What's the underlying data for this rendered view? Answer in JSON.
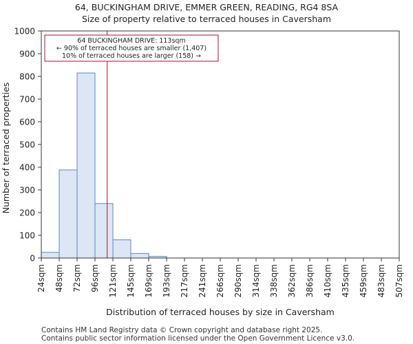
{
  "chart_data": {
    "type": "histogram",
    "title_line1": "64, BUCKINGHAM DRIVE, EMMER GREEN, READING, RG4 8SA",
    "title_line2": "Size of property relative to terraced houses in Caversham",
    "xlabel": "Distribution of terraced houses by size in Caversham",
    "ylabel": "Number of terraced properties",
    "ylim": [
      0,
      1000
    ],
    "yticks": [
      0,
      100,
      200,
      300,
      400,
      500,
      600,
      700,
      800,
      900,
      1000
    ],
    "bin_edges": [
      24,
      48,
      72,
      96,
      121,
      145,
      169,
      193,
      217,
      241,
      266,
      290,
      314,
      338,
      362,
      386,
      410,
      435,
      459,
      483,
      507
    ],
    "x_tick_labels": [
      "24sqm",
      "48sqm",
      "72sqm",
      "96sqm",
      "121sqm",
      "145sqm",
      "169sqm",
      "193sqm",
      "217sqm",
      "241sqm",
      "266sqm",
      "290sqm",
      "314sqm",
      "338sqm",
      "362sqm",
      "386sqm",
      "410sqm",
      "435sqm",
      "459sqm",
      "483sqm",
      "507sqm"
    ],
    "values": [
      25,
      388,
      815,
      240,
      80,
      20,
      7,
      0,
      0,
      0,
      0,
      0,
      0,
      0,
      0,
      0,
      0,
      0,
      0,
      0
    ],
    "bar_fill": "#dce6f5",
    "bar_edge": "#5b86c5",
    "property_line": {
      "value": 113,
      "color": "#aa1122"
    },
    "annotation": {
      "line1": "64 BUCKINGHAM DRIVE: 113sqm",
      "line2": "← 90% of terraced houses are smaller (1,407)",
      "line3": "10% of terraced houses are larger (158) →",
      "border_color": "#aa1122"
    },
    "grid": false
  },
  "footer": {
    "line1": "Contains HM Land Registry data © Crown copyright and database right 2025.",
    "line2": "Contains public sector information licensed under the Open Government Licence v3.0."
  }
}
